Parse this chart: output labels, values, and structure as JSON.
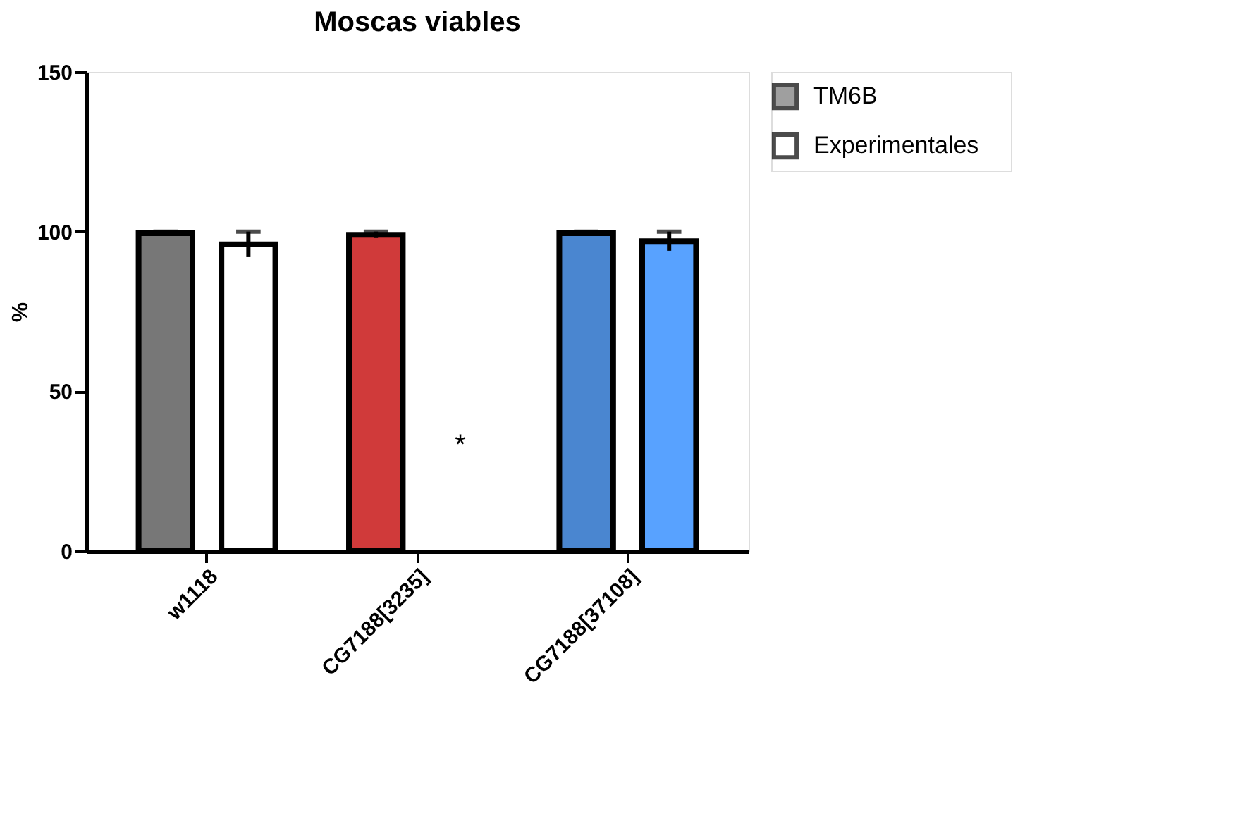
{
  "chart_data": {
    "type": "bar",
    "title": "Moscas viables",
    "ylabel": "%",
    "categories": [
      "w1118",
      "CG7188[3235]",
      "CG7188[37108]"
    ],
    "series": [
      {
        "name": "TM6B",
        "color": "#777777",
        "colors": [
          "#777777",
          "#d03a3a",
          "#4a86d0"
        ],
        "values": [
          99.5,
          99,
          99.5
        ],
        "errors": [
          0.5,
          1,
          0.5
        ]
      },
      {
        "name": "Experimentales",
        "color": "#ffffff",
        "colors": [
          "#ffffff",
          "#ffffff",
          "#58a2ff"
        ],
        "values": [
          96,
          0,
          97
        ],
        "errors": [
          4,
          null,
          3
        ]
      }
    ],
    "ylim": [
      0,
      150
    ],
    "yticks": [
      0,
      50,
      100,
      150
    ],
    "grid": false,
    "legend": "top right",
    "annotations": [
      "*"
    ]
  }
}
